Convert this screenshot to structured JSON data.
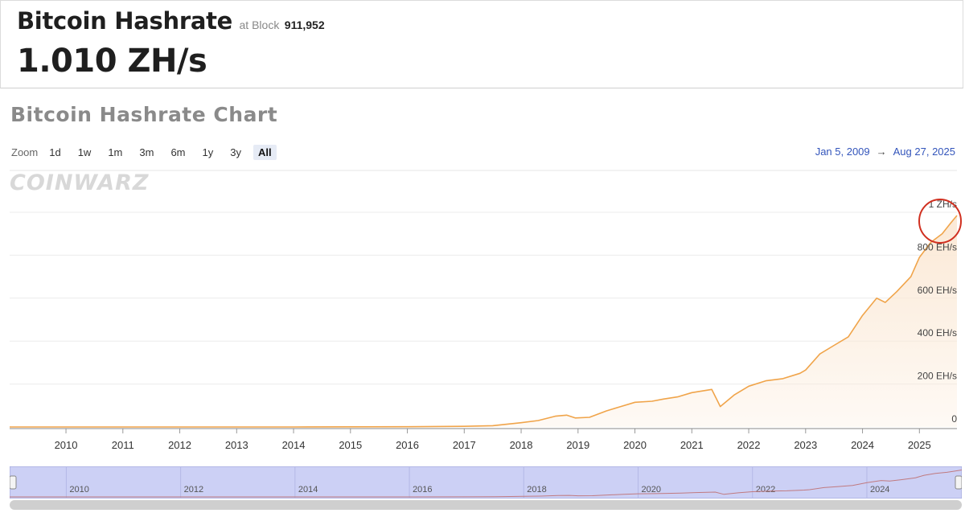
{
  "header": {
    "title": "Bitcoin Hashrate",
    "at_block_label": "at Block",
    "block_number": "911,952",
    "hashrate_value": "1.010 ZH/s"
  },
  "chart_section": {
    "title": "Bitcoin Hashrate Chart",
    "zoom_label": "Zoom",
    "zoom_options": [
      "1d",
      "1w",
      "1m",
      "3m",
      "6m",
      "1y",
      "3y",
      "All"
    ],
    "zoom_selected": "All",
    "range_start": "Jan 5, 2009",
    "range_arrow": "→",
    "range_end": "Aug 27, 2025",
    "watermark": "COINWARZ"
  },
  "chart_data": {
    "type": "area",
    "x_unit": "year",
    "y_unit": "EH/s",
    "xlim": [
      2009.01,
      2025.66
    ],
    "ylim": [
      0,
      1000
    ],
    "x_ticks": [
      "2010",
      "2011",
      "2012",
      "2013",
      "2014",
      "2015",
      "2016",
      "2017",
      "2018",
      "2019",
      "2020",
      "2021",
      "2022",
      "2023",
      "2024",
      "2025"
    ],
    "y_ticks": [
      {
        "value": 0,
        "label": "0"
      },
      {
        "value": 200,
        "label": "200 EH/s"
      },
      {
        "value": 400,
        "label": "400 EH/s"
      },
      {
        "value": 600,
        "label": "600 EH/s"
      },
      {
        "value": 800,
        "label": "800 EH/s"
      },
      {
        "value": 1000,
        "label": "1 ZH/s"
      }
    ],
    "points": [
      [
        2009.01,
        0
      ],
      [
        2014.0,
        0.1
      ],
      [
        2016.0,
        1
      ],
      [
        2017.0,
        3
      ],
      [
        2017.5,
        6
      ],
      [
        2018.0,
        20
      ],
      [
        2018.3,
        30
      ],
      [
        2018.6,
        50
      ],
      [
        2018.8,
        55
      ],
      [
        2018.95,
        42
      ],
      [
        2019.2,
        45
      ],
      [
        2019.5,
        75
      ],
      [
        2019.75,
        95
      ],
      [
        2020.0,
        115
      ],
      [
        2020.3,
        120
      ],
      [
        2020.5,
        130
      ],
      [
        2020.75,
        140
      ],
      [
        2021.0,
        160
      ],
      [
        2021.35,
        175
      ],
      [
        2021.5,
        95
      ],
      [
        2021.75,
        150
      ],
      [
        2022.0,
        190
      ],
      [
        2022.3,
        215
      ],
      [
        2022.6,
        225
      ],
      [
        2022.9,
        250
      ],
      [
        2023.0,
        265
      ],
      [
        2023.25,
        340
      ],
      [
        2023.5,
        380
      ],
      [
        2023.75,
        420
      ],
      [
        2024.0,
        520
      ],
      [
        2024.25,
        600
      ],
      [
        2024.4,
        580
      ],
      [
        2024.6,
        630
      ],
      [
        2024.85,
        700
      ],
      [
        2025.0,
        790
      ],
      [
        2025.2,
        860
      ],
      [
        2025.4,
        900
      ],
      [
        2025.55,
        950
      ],
      [
        2025.66,
        985
      ]
    ],
    "line_color": "#f0a44a",
    "area_color": "#fbe9d6",
    "highlight": {
      "label": "1 ZH/s",
      "color": "#d03020"
    },
    "grid": true,
    "legend": "none",
    "navigator": {
      "fill_color": "#ccd0f5",
      "x_ticks": [
        "2010",
        "2012",
        "2014",
        "2016",
        "2018",
        "2020",
        "2022",
        "2024"
      ]
    }
  }
}
